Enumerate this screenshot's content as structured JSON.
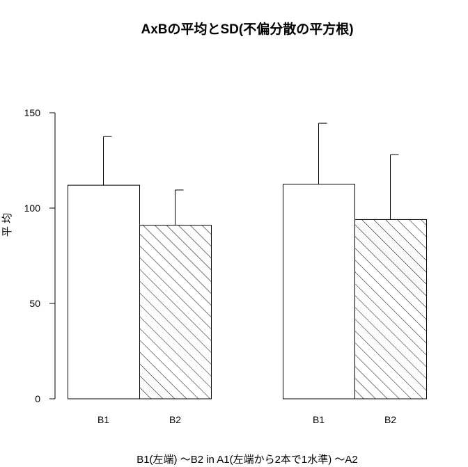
{
  "chart_data": {
    "type": "bar",
    "title": "AxBの平均とSD(不偏分散の平方根)",
    "xlabel": "B1(左端) ～B2  in  A1(左端から2本で1水準) ～A2",
    "ylabel": "平 均",
    "ylim": [
      0,
      150
    ],
    "yticks": [
      0,
      50,
      100,
      150
    ],
    "groups": [
      "A1",
      "A2"
    ],
    "categories": [
      "B1",
      "B2"
    ],
    "series": [
      {
        "group": "A1",
        "values": [
          112,
          91
        ],
        "sd": [
          25.5,
          18.5
        ]
      },
      {
        "group": "A2",
        "values": [
          112.5,
          94
        ],
        "sd": [
          32,
          34
        ]
      }
    ],
    "fill": {
      "B1": "none",
      "B2": "diagonal-hatch"
    },
    "colors": {
      "bar_border": "#000000",
      "hatch": "#000000",
      "background": "#ffffff"
    },
    "grid": false,
    "legend": "none"
  }
}
